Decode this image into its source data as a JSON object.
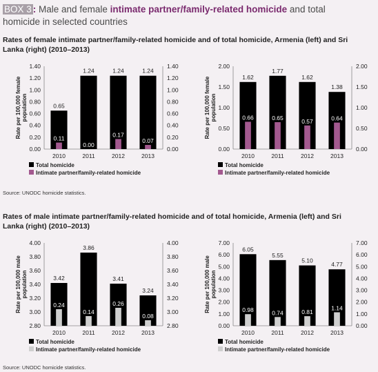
{
  "header": {
    "box_label": "BOX 3",
    "box_sep": ":",
    "title_pre": " Male and female ",
    "title_highlight": "intimate partner/family-related homicide",
    "title_post": " and total",
    "title_line2": "homicide in selected countries"
  },
  "sections": [
    {
      "title_line1": "Rates of female intimate partner/family-related homicide and of total homicide, Armenia (left) and Sri",
      "title_line2": "Lanka (right) (2010–2013)",
      "source": "Source: UNODC homicide statistics."
    },
    {
      "title_line1": "Rates of male intimate partner/family-related homicide and of total homicide, Armenia (left) and Sri",
      "title_line2": "Lanka (right) (2010–2013)",
      "source": "Source: UNODC homicide statistics."
    }
  ],
  "colors": {
    "total": "#000000",
    "female_ipfr": "#a3598f",
    "male_ipfr": "#cfcfcf",
    "background": "#f4f0f3",
    "accent": "#7a2a6e"
  },
  "chart_data": [
    {
      "type": "bar",
      "panel": "female-armenia",
      "categories": [
        "2010",
        "2011",
        "2012",
        "2013"
      ],
      "series": [
        {
          "name": "Total homicide",
          "values": [
            0.65,
            1.24,
            1.24,
            1.24
          ],
          "labels": [
            "0.65",
            "1.24",
            "1.24",
            "1.24"
          ]
        },
        {
          "name": "Intimate partner/family-related homicide",
          "values": [
            0.11,
            0.0,
            0.17,
            0.07
          ],
          "labels": [
            "0.11",
            "0.00",
            "0.17",
            "0.07"
          ]
        }
      ],
      "ylabel": "Rate per 100,000 female population",
      "ylim": [
        0,
        1.4
      ],
      "yticks": [
        "0.00",
        "0.20",
        "0.40",
        "0.60",
        "0.80",
        "1.00",
        "1.20",
        "1.40"
      ],
      "legend": "bottom-left",
      "grid": false
    },
    {
      "type": "bar",
      "panel": "female-srilanka",
      "categories": [
        "2010",
        "2011",
        "2012",
        "2013"
      ],
      "series": [
        {
          "name": "Total homicide",
          "values": [
            1.62,
            1.77,
            1.62,
            1.38
          ],
          "labels": [
            "1.62",
            "1.77",
            "1.62",
            "1.38"
          ]
        },
        {
          "name": "Intimate partner/family-related homicide",
          "values": [
            0.66,
            0.65,
            0.57,
            0.64
          ],
          "labels": [
            "0.66",
            "0.65",
            "0.57",
            "0.64"
          ]
        }
      ],
      "ylabel": "Rate per 100,000 female population",
      "ylim": [
        0,
        2.0
      ],
      "yticks": [
        "0.00",
        "0.50",
        "1.00",
        "1.50",
        "2.00"
      ],
      "legend": "bottom-left",
      "grid": false
    },
    {
      "type": "bar",
      "panel": "male-armenia",
      "categories": [
        "2010",
        "2011",
        "2012",
        "2013"
      ],
      "series": [
        {
          "name": "Total homicide",
          "values": [
            3.42,
            3.86,
            3.41,
            3.24
          ],
          "labels": [
            "3.42",
            "3.86",
            "3.41",
            "3.24"
          ]
        },
        {
          "name": "Intimate partner/family-related homicide",
          "values": [
            0.24,
            0.14,
            0.26,
            0.08
          ],
          "labels": [
            "0.24",
            "0.14",
            "0.26",
            "0.08"
          ]
        }
      ],
      "ylabel": "Rate per 100,000 male population",
      "ylim": [
        2.8,
        4.0
      ],
      "yticks": [
        "2.80",
        "3.00",
        "3.20",
        "3.40",
        "3.60",
        "3.80",
        "4.00"
      ],
      "legend": "bottom-left",
      "grid": false
    },
    {
      "type": "bar",
      "panel": "male-srilanka",
      "categories": [
        "2010",
        "2011",
        "2012",
        "2013"
      ],
      "series": [
        {
          "name": "Total homicide",
          "values": [
            6.05,
            5.55,
            5.1,
            4.77
          ],
          "labels": [
            "6.05",
            "5.55",
            "5.10",
            "4.77"
          ]
        },
        {
          "name": "Intimate partner/family-related homicide",
          "values": [
            0.98,
            0.74,
            0.81,
            1.14
          ],
          "labels": [
            "0.98",
            "0.74",
            "0.81",
            "1.14"
          ]
        }
      ],
      "ylabel": "Rate per 100,000 male population",
      "ylim": [
        0,
        7.0
      ],
      "yticks": [
        "0.00",
        "1.00",
        "2.00",
        "3.00",
        "4.00",
        "5.00",
        "6.00",
        "7.00"
      ],
      "legend": "bottom-left",
      "grid": false
    }
  ]
}
